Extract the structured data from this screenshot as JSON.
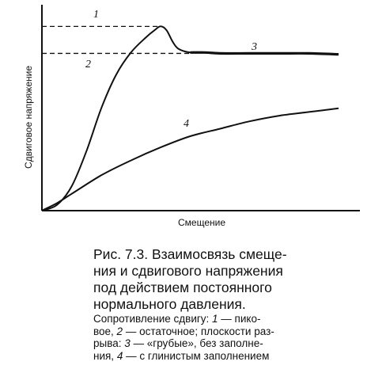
{
  "chart_data": {
    "type": "line",
    "title": "",
    "ylabel": "Сдвиговое напряжение",
    "xlabel": "Смещение",
    "xlim": [
      0,
      1
    ],
    "ylim": [
      0,
      1
    ],
    "grid": false,
    "ticks": "none",
    "series": [
      {
        "name": "1",
        "x": [
          0,
          0.05,
          0.1,
          0.15,
          0.2,
          0.25,
          0.3,
          0.35,
          0.38,
          0.4,
          0.42,
          0.44,
          0.46,
          0.5,
          0.55,
          0.6,
          0.7,
          0.8,
          0.9,
          1.0
        ],
        "values": [
          0,
          0.03,
          0.13,
          0.32,
          0.55,
          0.73,
          0.85,
          0.93,
          0.97,
          0.99,
          0.97,
          0.91,
          0.87,
          0.85,
          0.85,
          0.845,
          0.845,
          0.845,
          0.845,
          0.84
        ]
      },
      {
        "name": "4",
        "x": [
          0,
          0.05,
          0.1,
          0.2,
          0.3,
          0.4,
          0.5,
          0.6,
          0.7,
          0.8,
          0.9,
          1.0
        ],
        "values": [
          0,
          0.04,
          0.09,
          0.19,
          0.27,
          0.34,
          0.4,
          0.44,
          0.48,
          0.51,
          0.53,
          0.55
        ]
      }
    ],
    "reference_lines": [
      {
        "label": "1",
        "y": 0.99
      },
      {
        "label": "2",
        "y": 0.845
      }
    ],
    "annotations": [
      {
        "label": "1",
        "target": "peak"
      },
      {
        "label": "2",
        "target": "residual"
      },
      {
        "label": "3",
        "target": "rough"
      },
      {
        "label": "4",
        "target": "clay_filled"
      }
    ]
  },
  "caption": {
    "title_lines": [
      "Рис. 7.3. Взаимосвязь смеще-",
      "ния и сдвигового напряжения",
      "под    действием    постоянного",
      "нормального давления."
    ],
    "body_lines": [
      [
        "Сопротивление  сдвигу:  ",
        {
          "i": "1"
        },
        " — пико-"
      ],
      [
        "вое, ",
        {
          "i": "2"
        },
        " — остаточное;  плоскости  раз-"
      ],
      [
        "рыва:  ",
        {
          "i": "3"
        },
        " — «грубые»,   без   заполне-"
      ],
      [
        "ния,  ",
        {
          "i": "4"
        },
        " — с  глинистым  заполнением"
      ]
    ]
  }
}
